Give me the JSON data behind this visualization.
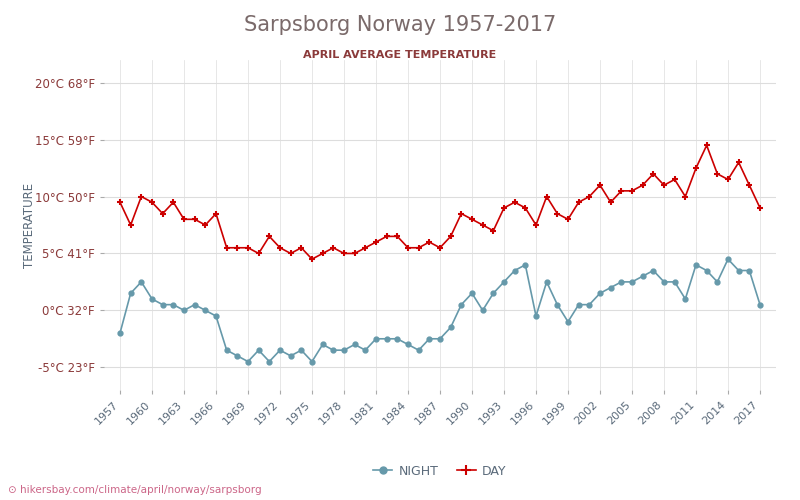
{
  "title": "Sarpsborg Norway 1957-2017",
  "subtitle": "APRIL AVERAGE TEMPERATURE",
  "ylabel": "TEMPERATURE",
  "footer": "hikersbay.com/climate/april/norway/sarpsborg",
  "title_color": "#7a6a6a",
  "subtitle_color": "#8b3a3a",
  "bg_color": "#ffffff",
  "grid_color": "#dddddd",
  "years": [
    1957,
    1958,
    1959,
    1960,
    1961,
    1962,
    1963,
    1964,
    1965,
    1966,
    1967,
    1968,
    1969,
    1970,
    1971,
    1972,
    1973,
    1974,
    1975,
    1976,
    1977,
    1978,
    1979,
    1980,
    1981,
    1982,
    1983,
    1984,
    1985,
    1986,
    1987,
    1988,
    1989,
    1990,
    1991,
    1992,
    1993,
    1994,
    1995,
    1996,
    1997,
    1998,
    1999,
    2000,
    2001,
    2002,
    2003,
    2004,
    2005,
    2006,
    2007,
    2008,
    2009,
    2010,
    2011,
    2012,
    2013,
    2014,
    2015,
    2016,
    2017
  ],
  "day_temps": [
    9.5,
    7.5,
    10.0,
    9.5,
    8.5,
    9.5,
    8.0,
    8.0,
    7.5,
    8.5,
    5.5,
    5.5,
    5.5,
    5.0,
    6.5,
    5.5,
    5.0,
    5.5,
    4.5,
    5.0,
    5.5,
    5.0,
    5.0,
    5.5,
    6.0,
    6.5,
    6.5,
    5.5,
    5.5,
    6.0,
    5.5,
    6.5,
    8.5,
    8.0,
    7.5,
    7.0,
    9.0,
    9.5,
    9.0,
    7.5,
    10.0,
    8.5,
    8.0,
    9.5,
    10.0,
    11.0,
    9.5,
    10.5,
    10.5,
    11.0,
    12.0,
    11.0,
    11.5,
    10.0,
    12.5,
    14.5,
    12.0,
    11.5,
    13.0,
    11.0,
    9.0
  ],
  "night_temps": [
    -2.0,
    1.5,
    2.5,
    1.0,
    0.5,
    0.5,
    0.0,
    0.5,
    0.0,
    -0.5,
    -3.5,
    -4.0,
    -4.5,
    -3.5,
    -4.5,
    -3.5,
    -4.0,
    -3.5,
    -4.5,
    -3.0,
    -3.5,
    -3.5,
    -3.0,
    -3.5,
    -2.5,
    -2.5,
    -2.5,
    -3.0,
    -3.5,
    -2.5,
    -2.5,
    -1.5,
    0.5,
    1.5,
    0.0,
    1.5,
    2.5,
    3.5,
    4.0,
    -0.5,
    2.5,
    0.5,
    -1.0,
    0.5,
    0.5,
    1.5,
    2.0,
    2.5,
    2.5,
    3.0,
    3.5,
    2.5,
    2.5,
    1.0,
    4.0,
    3.5,
    2.5,
    4.5,
    3.5,
    3.5,
    0.5
  ],
  "day_color": "#cc0000",
  "night_color": "#6699aa",
  "day_marker": "+",
  "night_marker": "o",
  "ylim": [
    -7,
    22
  ],
  "yticks_c": [
    -5,
    0,
    5,
    10,
    15,
    20
  ],
  "yticks_f": [
    23,
    32,
    41,
    50,
    59,
    68
  ],
  "xtick_years": [
    1957,
    1960,
    1963,
    1966,
    1969,
    1972,
    1975,
    1978,
    1981,
    1984,
    1987,
    1990,
    1993,
    1996,
    1999,
    2002,
    2005,
    2008,
    2011,
    2014,
    2017
  ]
}
